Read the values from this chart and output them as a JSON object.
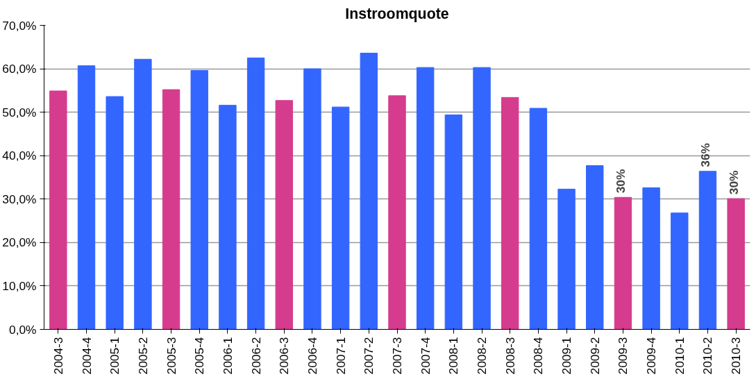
{
  "chart_data": {
    "type": "bar",
    "title": "Instroomquote",
    "categories": [
      "2004-3",
      "2004-4",
      "2005-1",
      "2005-2",
      "2005-3",
      "2005-4",
      "2006-1",
      "2006-2",
      "2006-3",
      "2006-4",
      "2007-1",
      "2007-2",
      "2007-3",
      "2007-4",
      "2008-1",
      "2008-2",
      "2008-3",
      "2008-4",
      "2009-1",
      "2009-2",
      "2009-3",
      "2009-4",
      "2010-1",
      "2010-2",
      "2010-3"
    ],
    "values": [
      54.9,
      60.7,
      53.6,
      62.2,
      55.2,
      59.6,
      51.6,
      62.5,
      52.7,
      60.0,
      51.2,
      63.6,
      53.8,
      60.3,
      49.4,
      60.3,
      53.4,
      50.9,
      32.3,
      37.7,
      30.4,
      32.6,
      26.8,
      36.4,
      30.1
    ],
    "colors": [
      "#d63c8e",
      "#3366ff",
      "#3366ff",
      "#3366ff",
      "#d63c8e",
      "#3366ff",
      "#3366ff",
      "#3366ff",
      "#d63c8e",
      "#3366ff",
      "#3366ff",
      "#3366ff",
      "#d63c8e",
      "#3366ff",
      "#3366ff",
      "#3366ff",
      "#d63c8e",
      "#3366ff",
      "#3366ff",
      "#3366ff",
      "#d63c8e",
      "#3366ff",
      "#3366ff",
      "#3366ff",
      "#d63c8e"
    ],
    "value_labels": [
      null,
      null,
      null,
      null,
      null,
      null,
      null,
      null,
      null,
      null,
      null,
      null,
      null,
      null,
      null,
      null,
      null,
      null,
      null,
      null,
      "30%",
      null,
      null,
      "36%",
      "30%"
    ],
    "ylim": [
      0,
      70
    ],
    "yticks": [
      {
        "value": 0,
        "label": "0,0%"
      },
      {
        "value": 10,
        "label": "10,0%"
      },
      {
        "value": 20,
        "label": "20,0%"
      },
      {
        "value": 30,
        "label": "30,0%"
      },
      {
        "value": 40,
        "label": "40,0%"
      },
      {
        "value": 50,
        "label": "50,0%"
      },
      {
        "value": 60,
        "label": "60,0%"
      },
      {
        "value": 70,
        "label": "70,0%"
      }
    ],
    "grid": "y"
  }
}
